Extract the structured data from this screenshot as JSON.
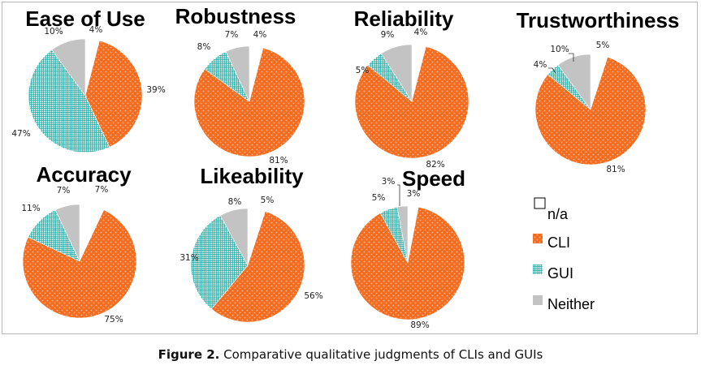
{
  "caption": {
    "label": "Figure 2.",
    "text": "Comparative qualitative judgments of CLIs and GUIs"
  },
  "colors": {
    "cli": "#f26d21",
    "gui": "#1aa7a1",
    "neither": "#c3c3c3",
    "na": "#ffffff"
  },
  "legend": [
    {
      "key": "na",
      "label": "n/a"
    },
    {
      "key": "cli",
      "label": "CLI"
    },
    {
      "key": "gui",
      "label": "GUI"
    },
    {
      "key": "neither",
      "label": "Neither"
    }
  ],
  "chart_data": [
    {
      "type": "pie",
      "title": "Ease of Use",
      "slices": [
        {
          "label": "n/a",
          "value": 4,
          "text": "4%"
        },
        {
          "label": "CLI",
          "value": 39,
          "text": "39%"
        },
        {
          "label": "GUI",
          "value": 47,
          "text": "47%"
        },
        {
          "label": "Neither",
          "value": 10,
          "text": "10%"
        }
      ]
    },
    {
      "type": "pie",
      "title": "Robustness",
      "slices": [
        {
          "label": "n/a",
          "value": 4,
          "text": "4%"
        },
        {
          "label": "CLI",
          "value": 81,
          "text": "81%"
        },
        {
          "label": "GUI",
          "value": 8,
          "text": "8%"
        },
        {
          "label": "Neither",
          "value": 7,
          "text": "7%"
        }
      ]
    },
    {
      "type": "pie",
      "title": "Reliability",
      "slices": [
        {
          "label": "n/a",
          "value": 4,
          "text": "4%"
        },
        {
          "label": "CLI",
          "value": 82,
          "text": "82%"
        },
        {
          "label": "GUI",
          "value": 5,
          "text": "5%"
        },
        {
          "label": "Neither",
          "value": 9,
          "text": "9%"
        }
      ]
    },
    {
      "type": "pie",
      "title": "Trustworthiness",
      "slices": [
        {
          "label": "n/a",
          "value": 5,
          "text": "5%"
        },
        {
          "label": "CLI",
          "value": 81,
          "text": "81%"
        },
        {
          "label": "GUI",
          "value": 4,
          "text": "4%"
        },
        {
          "label": "Neither",
          "value": 10,
          "text": "10%"
        }
      ]
    },
    {
      "type": "pie",
      "title": "Accuracy",
      "slices": [
        {
          "label": "n/a",
          "value": 7,
          "text": "7%"
        },
        {
          "label": "CLI",
          "value": 75,
          "text": "75%"
        },
        {
          "label": "GUI",
          "value": 11,
          "text": "11%"
        },
        {
          "label": "Neither",
          "value": 7,
          "text": "7%"
        }
      ]
    },
    {
      "type": "pie",
      "title": "Likeability",
      "slices": [
        {
          "label": "n/a",
          "value": 5,
          "text": "5%"
        },
        {
          "label": "CLI",
          "value": 56,
          "text": "56%"
        },
        {
          "label": "GUI",
          "value": 31,
          "text": "31%"
        },
        {
          "label": "Neither",
          "value": 8,
          "text": "8%"
        }
      ]
    },
    {
      "type": "pie",
      "title": "Speed",
      "slices": [
        {
          "label": "n/a",
          "value": 3,
          "text": "3%"
        },
        {
          "label": "CLI",
          "value": 89,
          "text": "89%"
        },
        {
          "label": "GUI",
          "value": 5,
          "text": "5%"
        },
        {
          "label": "Neither",
          "value": 3,
          "text": "3%"
        }
      ]
    }
  ]
}
